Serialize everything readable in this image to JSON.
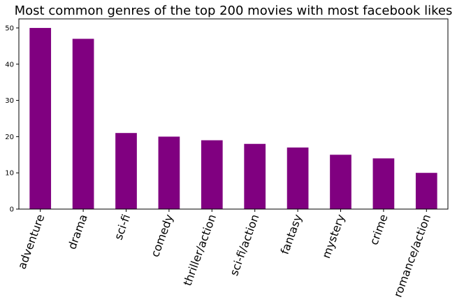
{
  "chart_data": {
    "type": "bar",
    "title": "Most common genres of the top 200 movies with most facebook likes",
    "xlabel": "",
    "ylabel": "",
    "categories": [
      "adventure",
      "drama",
      "sci-fi",
      "comedy",
      "thriller/action",
      "sci-fi/action",
      "fantasy",
      "mystery",
      "crime",
      "romance/action"
    ],
    "values": [
      50,
      47,
      21,
      20,
      19,
      18,
      17,
      15,
      14,
      10
    ],
    "ylim": [
      0,
      52.5
    ],
    "yticks": [
      "0",
      "10",
      "20",
      "30",
      "40",
      "50"
    ],
    "bar_color": "#800080",
    "grid": false,
    "legend": "none"
  }
}
